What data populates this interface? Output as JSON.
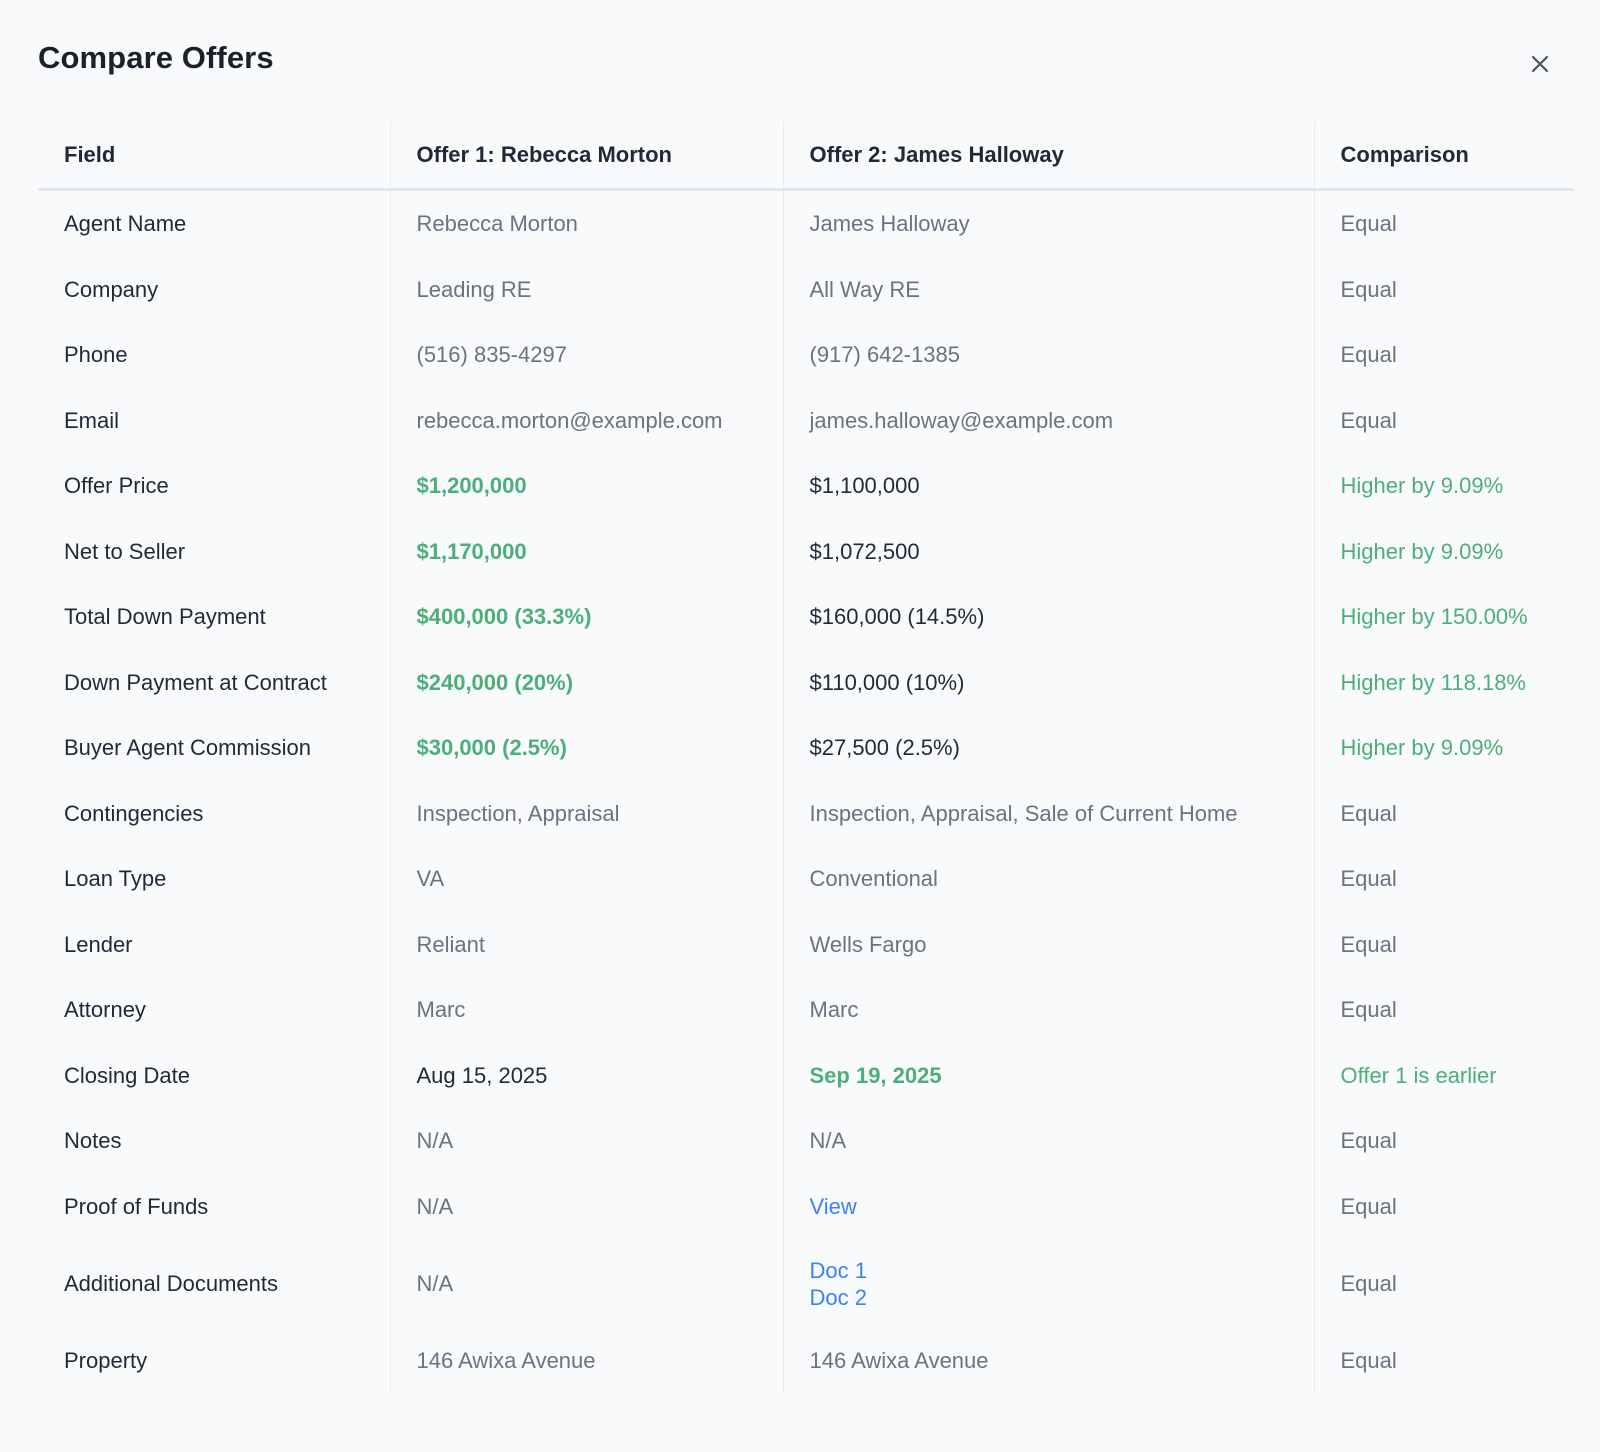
{
  "dialog": {
    "title": "Compare Offers",
    "close_icon": "close-icon"
  },
  "colors": {
    "best": "#4caf7a",
    "link": "#3b82f6",
    "muted": "#6b7280"
  },
  "table": {
    "headers": {
      "field": "Field",
      "offer1": "Offer 1: Rebecca Morton",
      "offer2": "Offer 2: James Halloway",
      "comparison": "Comparison"
    },
    "rows": [
      {
        "field": "Agent Name",
        "offer1": "Rebecca Morton",
        "offer2": "James Halloway",
        "comparison": "Equal"
      },
      {
        "field": "Company",
        "offer1": "Leading RE",
        "offer2": "All Way RE",
        "comparison": "Equal"
      },
      {
        "field": "Phone",
        "offer1": "(516) 835-4297",
        "offer2": "(917) 642-1385",
        "comparison": "Equal"
      },
      {
        "field": "Email",
        "offer1": "rebecca.morton@example.com",
        "offer2": "james.halloway@example.com",
        "comparison": "Equal"
      },
      {
        "field": "Offer Price",
        "offer1": "$1,200,000",
        "offer2": "$1,100,000",
        "comparison": "Higher by 9.09%"
      },
      {
        "field": "Net to Seller",
        "offer1": "$1,170,000",
        "offer2": "$1,072,500",
        "comparison": "Higher by 9.09%"
      },
      {
        "field": "Total Down Payment",
        "offer1": "$400,000 (33.3%)",
        "offer2": "$160,000 (14.5%)",
        "comparison": "Higher by 150.00%"
      },
      {
        "field": "Down Payment at Contract",
        "offer1": "$240,000 (20%)",
        "offer2": "$110,000 (10%)",
        "comparison": "Higher by 118.18%"
      },
      {
        "field": "Buyer Agent Commission",
        "offer1": "$30,000 (2.5%)",
        "offer2": "$27,500 (2.5%)",
        "comparison": "Higher by 9.09%"
      },
      {
        "field": "Contingencies",
        "offer1": "Inspection, Appraisal",
        "offer2": "Inspection, Appraisal, Sale of Current Home",
        "comparison": "Equal"
      },
      {
        "field": "Loan Type",
        "offer1": "VA",
        "offer2": "Conventional",
        "comparison": "Equal"
      },
      {
        "field": "Lender",
        "offer1": "Reliant",
        "offer2": "Wells Fargo",
        "comparison": "Equal"
      },
      {
        "field": "Attorney",
        "offer1": "Marc",
        "offer2": "Marc",
        "comparison": "Equal"
      },
      {
        "field": "Closing Date",
        "offer1": "Aug 15, 2025",
        "offer2": "Sep 19, 2025",
        "comparison": "Offer 1 is earlier"
      },
      {
        "field": "Notes",
        "offer1": "N/A",
        "offer2": "N/A",
        "comparison": "Equal"
      },
      {
        "field": "Proof of Funds",
        "offer1": "N/A",
        "offer2_link": "View",
        "comparison": "Equal"
      },
      {
        "field": "Additional Documents",
        "offer1": "N/A",
        "offer2_links": [
          "Doc 1",
          "Doc 2"
        ],
        "comparison": "Equal"
      },
      {
        "field": "Property",
        "offer1": "146 Awixa Avenue",
        "offer2": "146 Awixa Avenue",
        "comparison": "Equal"
      }
    ]
  }
}
